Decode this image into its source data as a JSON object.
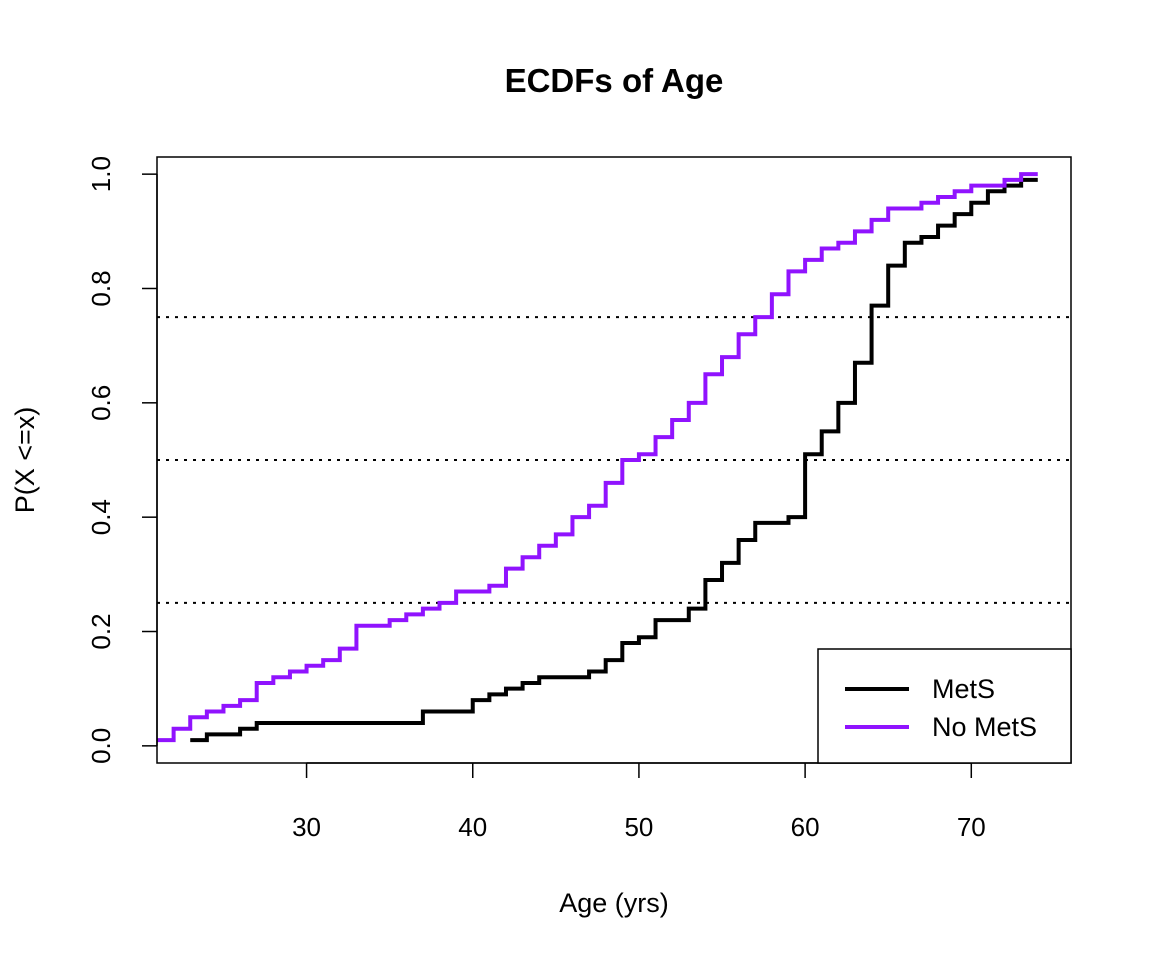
{
  "chart_data": {
    "type": "line",
    "step": true,
    "title": "ECDFs of Age",
    "xlabel": "Age (yrs)",
    "ylabel": "P(X <=x)",
    "xlim": [
      21,
      76
    ],
    "ylim": [
      -0.03,
      1.03
    ],
    "x_ticks": [
      30,
      40,
      50,
      60,
      70
    ],
    "y_ticks": [
      0.0,
      0.2,
      0.4,
      0.6,
      0.8,
      1.0
    ],
    "x_tick_labels": [
      "30",
      "40",
      "50",
      "60",
      "70"
    ],
    "y_tick_labels": [
      "0.0",
      "0.2",
      "0.4",
      "0.6",
      "0.8",
      "1.0"
    ],
    "reference_lines": [
      0.25,
      0.5,
      0.75
    ],
    "legend_position": "bottom-right",
    "series": [
      {
        "name": "MetS",
        "color": "#000000",
        "points": [
          [
            23,
            0.01
          ],
          [
            24,
            0.02
          ],
          [
            26,
            0.03
          ],
          [
            27,
            0.04
          ],
          [
            37,
            0.06
          ],
          [
            40,
            0.08
          ],
          [
            41,
            0.09
          ],
          [
            42,
            0.1
          ],
          [
            43,
            0.11
          ],
          [
            44,
            0.12
          ],
          [
            47,
            0.13
          ],
          [
            48,
            0.15
          ],
          [
            49,
            0.18
          ],
          [
            50,
            0.19
          ],
          [
            51,
            0.22
          ],
          [
            53,
            0.24
          ],
          [
            54,
            0.29
          ],
          [
            55,
            0.32
          ],
          [
            56,
            0.36
          ],
          [
            57,
            0.39
          ],
          [
            59,
            0.4
          ],
          [
            60,
            0.51
          ],
          [
            61,
            0.55
          ],
          [
            62,
            0.6
          ],
          [
            63,
            0.67
          ],
          [
            64,
            0.77
          ],
          [
            65,
            0.84
          ],
          [
            66,
            0.88
          ],
          [
            67,
            0.89
          ],
          [
            68,
            0.91
          ],
          [
            69,
            0.93
          ],
          [
            70,
            0.95
          ],
          [
            71,
            0.97
          ],
          [
            72,
            0.98
          ],
          [
            73,
            0.99
          ],
          [
            74,
            0.99
          ]
        ]
      },
      {
        "name": "No MetS",
        "color": "#9013fe",
        "points": [
          [
            21,
            0.01
          ],
          [
            22,
            0.03
          ],
          [
            23,
            0.05
          ],
          [
            24,
            0.06
          ],
          [
            25,
            0.07
          ],
          [
            26,
            0.08
          ],
          [
            27,
            0.11
          ],
          [
            28,
            0.12
          ],
          [
            29,
            0.13
          ],
          [
            30,
            0.14
          ],
          [
            31,
            0.15
          ],
          [
            32,
            0.17
          ],
          [
            33,
            0.21
          ],
          [
            35,
            0.22
          ],
          [
            36,
            0.23
          ],
          [
            37,
            0.24
          ],
          [
            38,
            0.25
          ],
          [
            39,
            0.27
          ],
          [
            41,
            0.28
          ],
          [
            42,
            0.31
          ],
          [
            43,
            0.33
          ],
          [
            44,
            0.35
          ],
          [
            45,
            0.37
          ],
          [
            46,
            0.4
          ],
          [
            47,
            0.42
          ],
          [
            48,
            0.46
          ],
          [
            49,
            0.5
          ],
          [
            50,
            0.51
          ],
          [
            51,
            0.54
          ],
          [
            52,
            0.57
          ],
          [
            53,
            0.6
          ],
          [
            54,
            0.65
          ],
          [
            55,
            0.68
          ],
          [
            56,
            0.72
          ],
          [
            57,
            0.75
          ],
          [
            58,
            0.79
          ],
          [
            59,
            0.83
          ],
          [
            60,
            0.85
          ],
          [
            61,
            0.87
          ],
          [
            62,
            0.88
          ],
          [
            63,
            0.9
          ],
          [
            64,
            0.92
          ],
          [
            65,
            0.94
          ],
          [
            67,
            0.95
          ],
          [
            68,
            0.96
          ],
          [
            69,
            0.97
          ],
          [
            70,
            0.98
          ],
          [
            72,
            0.99
          ],
          [
            73,
            1.0
          ],
          [
            74,
            1.0
          ]
        ]
      }
    ]
  }
}
